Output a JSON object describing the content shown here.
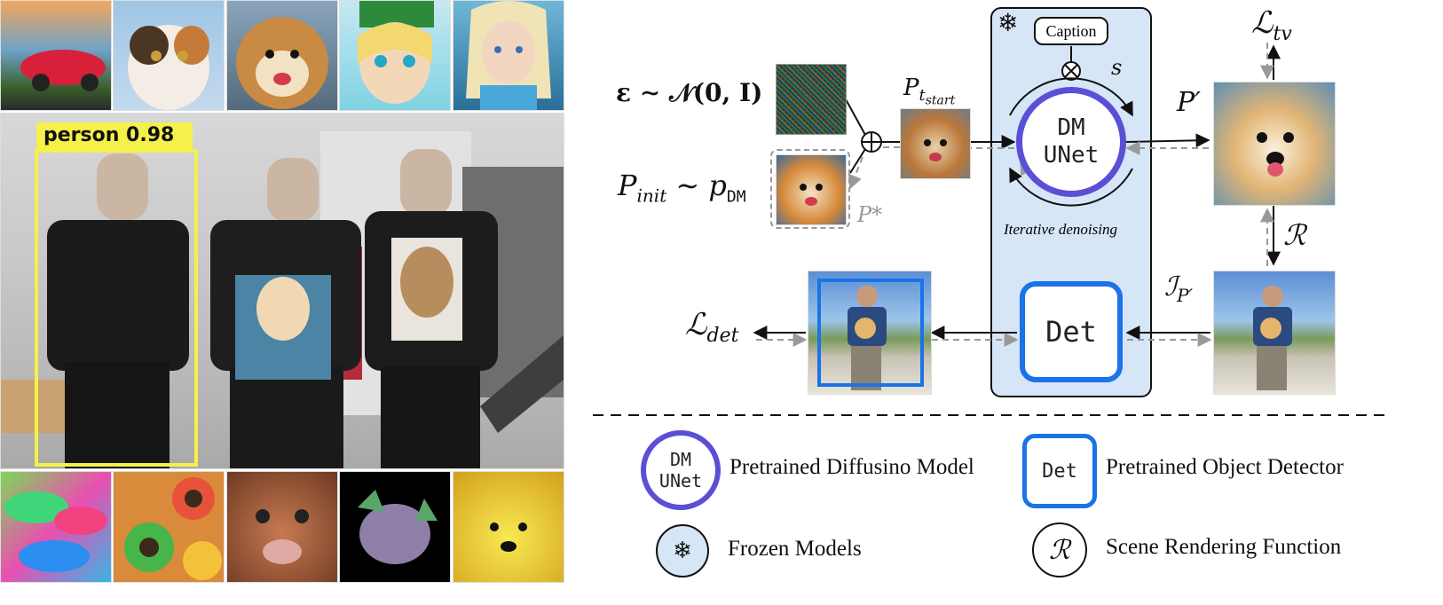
{
  "left_panel": {
    "detection_label": "person 0.98"
  },
  "pipeline": {
    "noise_label": "ε ∼ 𝒩(0, I)",
    "init_label_main": "P",
    "init_label_sub": "init",
    "init_label_rest": " ∼ p",
    "init_label_dm": "DM",
    "tstart_label_main": "P",
    "tstart_label_sub": "t",
    "tstart_label_subsub": "start",
    "pstar_label": "P*",
    "caption_label": "Caption",
    "s_label": "s",
    "unet_line1": "DM",
    "unet_line2": "UNet",
    "iterative_label": "Iterative denoising",
    "pprime_label": "P′",
    "ltv_main": "ℒ",
    "ltv_sub": "tv",
    "r_label": "ℛ",
    "ip_main": "ℐ",
    "ip_sub": "P′",
    "det_label": "Det",
    "ldet_main": "ℒ",
    "ldet_sub": "det"
  },
  "legend": {
    "unet_icon_line1": "DM",
    "unet_icon_line2": "UNet",
    "unet_text": "Pretrained Diffusino Model",
    "det_icon": "Det",
    "det_text": "Pretrained Object Detector",
    "frozen_icon": "snowflake-icon",
    "frozen_text": "Frozen Models",
    "render_icon": "ℛ",
    "render_text": "Scene Rendering Function"
  },
  "colors": {
    "unet_purple": "#5b4fd6",
    "det_blue": "#1a73e8",
    "frozen_bg": "#d6e6f7",
    "detect_yellow": "#f5f04a"
  }
}
